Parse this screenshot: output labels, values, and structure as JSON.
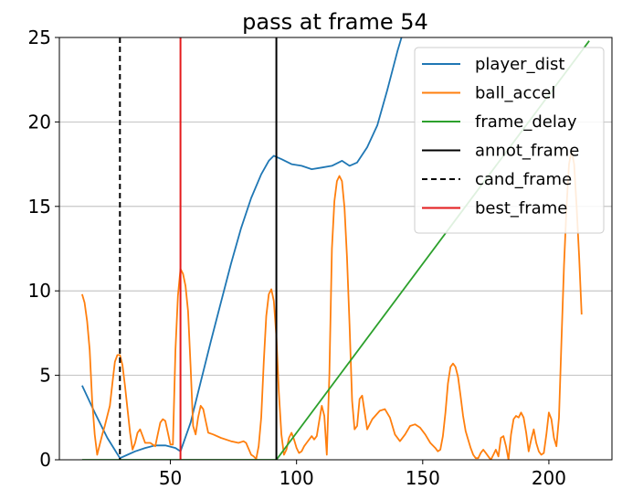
{
  "chart_data": {
    "type": "line",
    "title": "pass at frame 54",
    "xlabel": "",
    "ylabel": "",
    "xlim": [
      6,
      225
    ],
    "ylim": [
      0,
      25
    ],
    "xticks": [
      50,
      100,
      150,
      200
    ],
    "yticks": [
      0,
      5,
      10,
      15,
      20,
      25
    ],
    "grid": "horizontal",
    "legend_position": "top-right",
    "series": [
      {
        "name": "player_dist",
        "color": "#1f77b4",
        "points": [
          [
            15,
            4.4
          ],
          [
            20,
            2.8
          ],
          [
            25,
            1.3
          ],
          [
            30,
            0.1
          ],
          [
            33,
            0.3
          ],
          [
            36,
            0.5
          ],
          [
            40,
            0.7
          ],
          [
            44,
            0.85
          ],
          [
            48,
            0.85
          ],
          [
            52,
            0.7
          ],
          [
            54,
            0.5
          ],
          [
            58,
            2.2
          ],
          [
            62,
            4.6
          ],
          [
            66,
            7.0
          ],
          [
            70,
            9.3
          ],
          [
            74,
            11.6
          ],
          [
            78,
            13.7
          ],
          [
            82,
            15.5
          ],
          [
            86,
            16.9
          ],
          [
            89,
            17.7
          ],
          [
            91,
            18.0
          ],
          [
            94,
            17.8
          ],
          [
            98,
            17.5
          ],
          [
            102,
            17.4
          ],
          [
            106,
            17.2
          ],
          [
            110,
            17.3
          ],
          [
            114,
            17.4
          ],
          [
            118,
            17.7
          ],
          [
            121,
            17.4
          ],
          [
            124,
            17.6
          ],
          [
            128,
            18.5
          ],
          [
            132,
            19.8
          ],
          [
            136,
            21.9
          ],
          [
            140,
            24.2
          ],
          [
            142,
            25.2
          ]
        ]
      },
      {
        "name": "ball_accel",
        "color": "#ff7f0e",
        "points": [
          [
            15,
            9.8
          ],
          [
            16,
            9.3
          ],
          [
            17,
            8.2
          ],
          [
            18,
            6.5
          ],
          [
            19,
            3.5
          ],
          [
            20,
            1.5
          ],
          [
            21,
            0.3
          ],
          [
            22,
            0.9
          ],
          [
            23,
            1.5
          ],
          [
            24,
            2.0
          ],
          [
            26,
            3.2
          ],
          [
            27,
            4.5
          ],
          [
            28,
            5.8
          ],
          [
            29,
            6.2
          ],
          [
            30,
            6.2
          ],
          [
            31,
            5.6
          ],
          [
            32,
            4.4
          ],
          [
            33,
            3.0
          ],
          [
            34,
            1.6
          ],
          [
            35,
            0.6
          ],
          [
            36,
            1.0
          ],
          [
            37,
            1.6
          ],
          [
            38,
            1.8
          ],
          [
            39,
            1.4
          ],
          [
            40,
            1.0
          ],
          [
            42,
            1.0
          ],
          [
            44,
            0.8
          ],
          [
            45,
            1.5
          ],
          [
            46,
            2.2
          ],
          [
            47,
            2.4
          ],
          [
            48,
            2.3
          ],
          [
            49,
            1.6
          ],
          [
            50,
            0.9
          ],
          [
            51,
            0.9
          ],
          [
            52,
            6.5
          ],
          [
            53,
            9.7
          ],
          [
            54,
            11.3
          ],
          [
            55,
            11.0
          ],
          [
            56,
            10.3
          ],
          [
            57,
            8.8
          ],
          [
            58,
            5.5
          ],
          [
            59,
            2.0
          ],
          [
            60,
            1.5
          ],
          [
            61,
            2.5
          ],
          [
            62,
            3.2
          ],
          [
            63,
            3.0
          ],
          [
            64,
            2.3
          ],
          [
            65,
            1.6
          ],
          [
            67,
            1.5
          ],
          [
            70,
            1.3
          ],
          [
            74,
            1.1
          ],
          [
            77,
            1.0
          ],
          [
            79,
            1.1
          ],
          [
            80,
            1.0
          ],
          [
            82,
            0.3
          ],
          [
            83,
            0.2
          ],
          [
            84,
            0.05
          ],
          [
            85,
            0.8
          ],
          [
            86,
            2.5
          ],
          [
            87,
            5.8
          ],
          [
            88,
            8.5
          ],
          [
            89,
            9.8
          ],
          [
            90,
            10.1
          ],
          [
            91,
            9.4
          ],
          [
            92,
            7.3
          ],
          [
            93,
            4.0
          ],
          [
            94,
            1.5
          ],
          [
            95,
            0.3
          ],
          [
            96,
            0.6
          ],
          [
            97,
            1.3
          ],
          [
            98,
            1.6
          ],
          [
            99,
            1.2
          ],
          [
            100,
            0.7
          ],
          [
            101,
            0.4
          ],
          [
            102,
            0.5
          ],
          [
            103,
            0.8
          ],
          [
            104,
            1.0
          ],
          [
            106,
            1.4
          ],
          [
            107,
            1.2
          ],
          [
            108,
            1.4
          ],
          [
            109,
            2.3
          ],
          [
            110,
            3.2
          ],
          [
            111,
            2.6
          ],
          [
            112,
            0.3
          ],
          [
            113,
            5.0
          ],
          [
            114,
            12.5
          ],
          [
            115,
            15.3
          ],
          [
            116,
            16.5
          ],
          [
            117,
            16.8
          ],
          [
            118,
            16.5
          ],
          [
            119,
            14.9
          ],
          [
            120,
            12.0
          ],
          [
            121,
            8.0
          ],
          [
            122,
            3.5
          ],
          [
            123,
            1.8
          ],
          [
            124,
            2.0
          ],
          [
            125,
            3.6
          ],
          [
            126,
            3.8
          ],
          [
            127,
            2.8
          ],
          [
            128,
            1.8
          ],
          [
            130,
            2.4
          ],
          [
            133,
            2.9
          ],
          [
            135,
            3.0
          ],
          [
            137,
            2.5
          ],
          [
            139,
            1.5
          ],
          [
            141,
            1.1
          ],
          [
            143,
            1.5
          ],
          [
            145,
            2.0
          ],
          [
            147,
            2.1
          ],
          [
            149,
            1.9
          ],
          [
            151,
            1.5
          ],
          [
            153,
            1.0
          ],
          [
            155,
            0.7
          ],
          [
            156,
            0.5
          ],
          [
            157,
            0.6
          ],
          [
            158,
            1.4
          ],
          [
            159,
            2.8
          ],
          [
            160,
            4.5
          ],
          [
            161,
            5.5
          ],
          [
            162,
            5.7
          ],
          [
            163,
            5.5
          ],
          [
            164,
            4.9
          ],
          [
            165,
            3.8
          ],
          [
            166,
            2.6
          ],
          [
            167,
            1.7
          ],
          [
            168,
            1.2
          ],
          [
            169,
            0.7
          ],
          [
            170,
            0.3
          ],
          [
            171,
            0.1
          ],
          [
            172,
            0.1
          ],
          [
            173,
            0.4
          ],
          [
            174,
            0.6
          ],
          [
            175,
            0.4
          ],
          [
            176,
            0.2
          ],
          [
            177,
            0.0
          ],
          [
            178,
            0.3
          ],
          [
            179,
            0.6
          ],
          [
            180,
            0.2
          ],
          [
            181,
            1.3
          ],
          [
            182,
            1.4
          ],
          [
            183,
            0.8
          ],
          [
            184,
            0.0
          ],
          [
            185,
            1.5
          ],
          [
            186,
            2.4
          ],
          [
            187,
            2.6
          ],
          [
            188,
            2.5
          ],
          [
            189,
            2.8
          ],
          [
            190,
            2.5
          ],
          [
            191,
            1.6
          ],
          [
            192,
            0.5
          ],
          [
            193,
            1.2
          ],
          [
            194,
            1.8
          ],
          [
            195,
            1.0
          ],
          [
            196,
            0.5
          ],
          [
            197,
            0.3
          ],
          [
            198,
            0.4
          ],
          [
            199,
            1.5
          ],
          [
            200,
            2.8
          ],
          [
            201,
            2.4
          ],
          [
            202,
            1.3
          ],
          [
            203,
            0.8
          ],
          [
            204,
            2.5
          ],
          [
            205,
            7.0
          ],
          [
            206,
            11.5
          ],
          [
            207,
            15.0
          ],
          [
            208,
            17.5
          ],
          [
            209,
            18.3
          ],
          [
            210,
            17.5
          ],
          [
            211,
            15.0
          ],
          [
            212,
            12.0
          ],
          [
            213,
            8.6
          ]
        ]
      },
      {
        "name": "frame_delay",
        "color": "#2ca02c",
        "points": [
          [
            15,
            0
          ],
          [
            92,
            0
          ],
          [
            216,
            24.8
          ]
        ]
      }
    ],
    "vlines": [
      {
        "name": "annot_frame",
        "x": 92,
        "color": "#000000",
        "style": "solid"
      },
      {
        "name": "cand_frame",
        "x": 30,
        "color": "#000000",
        "style": "dashed"
      },
      {
        "name": "best_frame",
        "x": 54,
        "color": "#e41a1c",
        "style": "solid"
      }
    ],
    "legend": [
      "player_dist",
      "ball_accel",
      "frame_delay",
      "annot_frame",
      "cand_frame",
      "best_frame"
    ]
  }
}
